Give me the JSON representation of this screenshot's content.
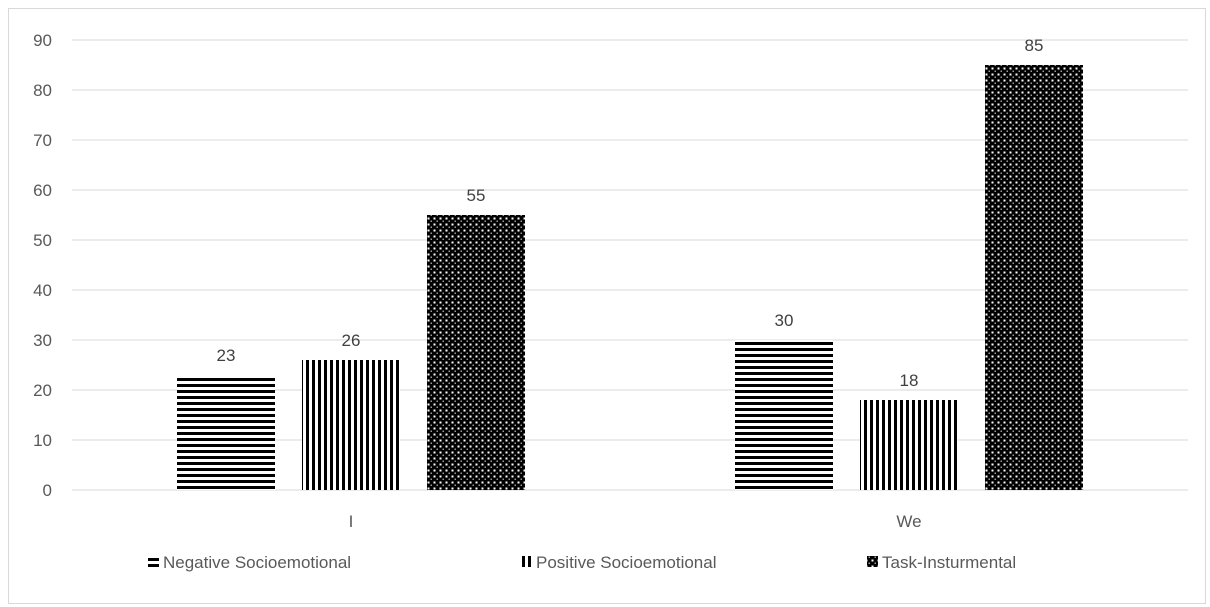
{
  "chart_data": {
    "type": "bar",
    "title": "",
    "xlabel": "",
    "ylabel": "",
    "categories": [
      "I",
      "We"
    ],
    "series": [
      {
        "name": "Negative Socioemotional",
        "pattern": "horizontal-lines",
        "values": [
          23,
          30
        ],
        "labels": [
          "23",
          "30"
        ]
      },
      {
        "name": "Positive Socioemotional",
        "pattern": "vertical-lines",
        "values": [
          26,
          18
        ],
        "labels": [
          "26",
          "18"
        ]
      },
      {
        "name": "Task-Insturmental",
        "pattern": "dotted-grid",
        "values": [
          55,
          85
        ],
        "labels": [
          "55",
          "85"
        ]
      }
    ],
    "ylim": [
      0,
      90
    ],
    "yticks": [
      0,
      10,
      20,
      30,
      40,
      50,
      60,
      70,
      80,
      90
    ],
    "ytick_labels": [
      "0",
      "10",
      "20",
      "30",
      "40",
      "50",
      "60",
      "70",
      "80",
      "90"
    ],
    "grid": true,
    "legend_position": "bottom",
    "colors": {
      "ink": "#000000",
      "grid": "#d9d9d9",
      "text": "#595959",
      "label": "#404040"
    }
  }
}
